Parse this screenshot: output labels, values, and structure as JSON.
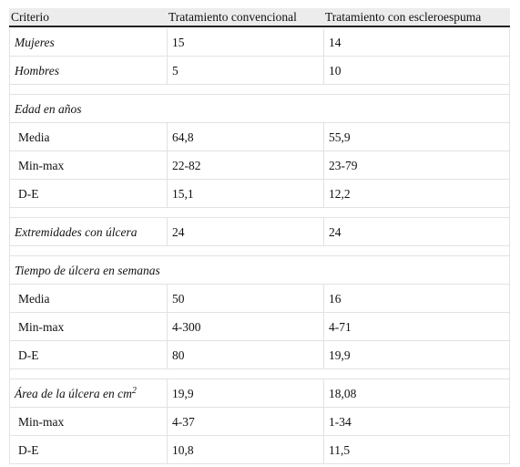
{
  "table": {
    "header": [
      "Criterio",
      "Tratamiento convencional",
      "Tratamiento con escleroespuma"
    ],
    "groups": [
      [
        {
          "italic": true,
          "cells": [
            "Mujeres",
            15,
            14
          ]
        },
        {
          "italic": true,
          "cells": [
            "Hombres",
            5,
            10
          ]
        }
      ],
      [
        {
          "italic": true,
          "cells": [
            "Edad en años"
          ]
        },
        {
          "cells": [
            "Media",
            "64,8",
            "55,9"
          ]
        },
        {
          "cells": [
            "Min-max",
            "22-82",
            "23-79"
          ]
        },
        {
          "cells": [
            "D-E",
            "15,1",
            "12,2"
          ]
        }
      ],
      [
        {
          "italic": true,
          "cells": [
            "Extremidades con úlcera",
            24,
            24
          ]
        }
      ],
      [
        {
          "italic": true,
          "cells": [
            "Tiempo de úlcera en semanas"
          ]
        },
        {
          "cells": [
            "Media",
            50,
            16
          ]
        },
        {
          "cells": [
            "Min-max",
            "4-300",
            "4-71"
          ]
        },
        {
          "cells": [
            "D-E",
            80,
            "19,9"
          ]
        }
      ],
      [
        {
          "italic": true,
          "cells": [
            "Área de la úlcera en cm",
            "19,9",
            "18,08"
          ],
          "sup": "2"
        },
        {
          "cells": [
            "Min-max",
            "4-37",
            "1-34"
          ]
        },
        {
          "cells": [
            "D-E",
            "10,8",
            "11,5"
          ]
        }
      ]
    ]
  }
}
